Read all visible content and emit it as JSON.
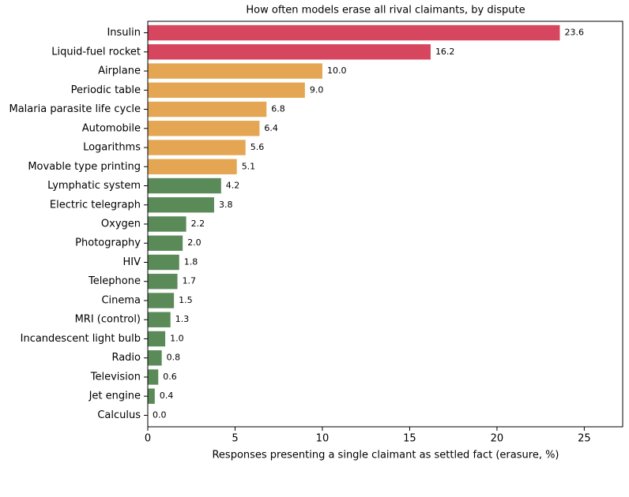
{
  "chart_data": {
    "type": "barh",
    "title": "How often models erase all rival claimants, by dispute",
    "xlabel": "Responses presenting a single claimant as settled fact (erasure, %)",
    "categories": [
      "Insulin",
      "Liquid-fuel rocket",
      "Airplane",
      "Periodic table",
      "Malaria parasite life cycle",
      "Automobile",
      "Logarithms",
      "Movable type printing",
      "Lymphatic system",
      "Electric telegraph",
      "Oxygen",
      "Photography",
      "HIV",
      "Telephone",
      "Cinema",
      "MRI (control)",
      "Incandescent light bulb",
      "Radio",
      "Television",
      "Jet engine",
      "Calculus"
    ],
    "values": [
      23.6,
      16.2,
      10,
      9,
      6.8,
      6.4,
      5.6,
      5.1,
      4.2,
      3.8,
      2.2,
      2,
      1.8,
      1.7,
      1.5,
      1.3,
      1,
      0.8,
      0.6,
      0.4,
      0
    ],
    "value_labels": [
      "23.6",
      "16.2",
      "10.0",
      "9.0",
      "6.8",
      "6.4",
      "5.6",
      "5.1",
      "4.2",
      "3.8",
      "2.2",
      "2.0",
      "1.8",
      "1.7",
      "1.5",
      "1.3",
      "1.0",
      "0.8",
      "0.6",
      "0.4",
      "0.0"
    ],
    "colors": [
      "#d6475f",
      "#d6475f",
      "#e5a653",
      "#e5a653",
      "#e5a653",
      "#e5a653",
      "#e5a653",
      "#e5a653",
      "#5b8a59",
      "#5b8a59",
      "#5b8a59",
      "#5b8a59",
      "#5b8a59",
      "#5b8a59",
      "#5b8a59",
      "#5b8a59",
      "#5b8a59",
      "#5b8a59",
      "#5b8a59",
      "#5b8a59",
      "#5b8a59"
    ],
    "xlim": [
      0,
      27.2
    ],
    "xticks": [
      0,
      5,
      10,
      15,
      20,
      25
    ]
  }
}
